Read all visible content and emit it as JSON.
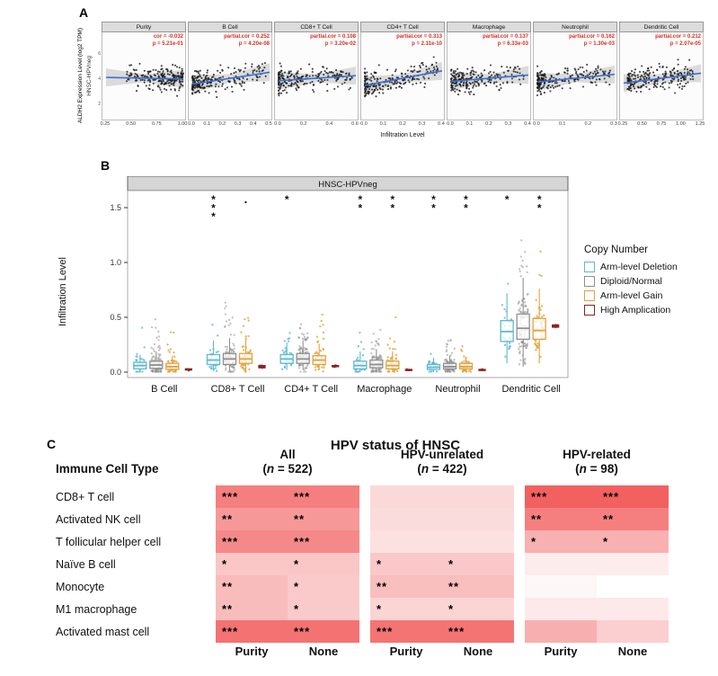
{
  "panels": {
    "a": "A",
    "b": "B",
    "c": "C"
  },
  "chart_data": [
    {
      "type": "scatter",
      "panel": "A",
      "ylabel": "ALDH2 Expression Level (log2 TPM)",
      "xlabel": "Infiltration Level",
      "facet_row": "HNSC-HPVneg",
      "stat_color": "#D93025",
      "line_color": "#3B6FD4",
      "point_color": "#1A1A1A",
      "y_ticks": [
        "6",
        "4",
        "2"
      ],
      "subplots": [
        {
          "name": "Purity",
          "cor": -0.032,
          "cor_label": "cor = -0.032",
          "p_label": "p = 5.21e-01",
          "x_ticks": [
            "0.25",
            "0.50",
            "0.75",
            "1.00"
          ],
          "xdist": "high",
          "n": 220
        },
        {
          "name": "B Cell",
          "cor": 0.252,
          "cor_label": "partial.cor = 0.252",
          "p_label": "p = 4.20e-08",
          "x_ticks": [
            "0.0",
            "0.1",
            "0.2",
            "0.3",
            "0.4",
            "0.5"
          ],
          "xdist": "low",
          "n": 220
        },
        {
          "name": "CD8+ T Cell",
          "cor": 0.108,
          "cor_label": "partial.cor = 0.108",
          "p_label": "p = 3.20e-02",
          "x_ticks": [
            "0.0",
            "0.2",
            "0.4",
            "0.6"
          ],
          "xdist": "low",
          "n": 220
        },
        {
          "name": "CD4+ T Cell",
          "cor": 0.313,
          "cor_label": "partial.cor = 0.313",
          "p_label": "p = 2.11e-10",
          "x_ticks": [
            "0.0",
            "0.1",
            "0.2",
            "0.3",
            "0.4"
          ],
          "xdist": "low",
          "n": 220
        },
        {
          "name": "Macrophage",
          "cor": 0.137,
          "cor_label": "partial.cor = 0.137",
          "p_label": "p = 6.33e-03",
          "x_ticks": [
            "0.0",
            "0.1",
            "0.2",
            "0.3",
            "0.4"
          ],
          "xdist": "low",
          "n": 220
        },
        {
          "name": "Neutrophil",
          "cor": 0.162,
          "cor_label": "partial.cor = 0.162",
          "p_label": "p = 1.30e-03",
          "x_ticks": [
            "0.0",
            "0.1",
            "0.2",
            "0.3"
          ],
          "xdist": "low",
          "n": 220
        },
        {
          "name": "Dendritic Cell",
          "cor": 0.212,
          "cor_label": "partial.cor = 0.212",
          "p_label": "p = 2.07e-05",
          "x_ticks": [
            "0.25",
            "0.50",
            "0.75",
            "1.00",
            "1.25"
          ],
          "xdist": "mid",
          "n": 220
        }
      ]
    },
    {
      "type": "box",
      "panel": "B",
      "title": "HNSC-HPVneg",
      "ylabel": "Infiltration Level",
      "ylim": [
        0,
        1.6
      ],
      "y_ticks": [
        "0.0",
        "0.5",
        "1.0",
        "1.5"
      ],
      "legend": {
        "title": "Copy Number",
        "items": [
          {
            "label": "Arm-level Deletion",
            "color": "#5FB8CE"
          },
          {
            "label": "Diploid/Normal",
            "color": "#8F8F8F"
          },
          {
            "label": "Arm-level Gain",
            "color": "#E0A23C"
          },
          {
            "label": "High Amplication",
            "color": "#8B2222"
          }
        ]
      },
      "categories": [
        "B Cell",
        "CD8+ T Cell",
        "CD4+ T Cell",
        "Macrophage",
        "Neutrophil",
        "Dendritic Cell"
      ],
      "groups": [
        {
          "name": "B Cell",
          "out_max": 0.55,
          "boxes": [
            {
              "lo": 0.005,
              "q1": 0.03,
              "med": 0.06,
              "q3": 0.09,
              "hi": 0.16
            },
            {
              "lo": 0.005,
              "q1": 0.035,
              "med": 0.065,
              "q3": 0.1,
              "hi": 0.19
            },
            {
              "lo": 0.005,
              "q1": 0.025,
              "med": 0.05,
              "q3": 0.08,
              "hi": 0.15
            },
            {
              "lo": 0.015,
              "q1": 0.02,
              "med": 0.025,
              "q3": 0.03,
              "hi": 0.035
            }
          ]
        },
        {
          "name": "CD8+ T Cell",
          "out_max": 0.8,
          "boxes": [
            {
              "lo": 0.01,
              "q1": 0.07,
              "med": 0.11,
              "q3": 0.16,
              "hi": 0.29
            },
            {
              "lo": 0.01,
              "q1": 0.07,
              "med": 0.12,
              "q3": 0.17,
              "hi": 0.31
            },
            {
              "lo": 0.01,
              "q1": 0.08,
              "med": 0.12,
              "q3": 0.17,
              "hi": 0.3
            },
            {
              "lo": 0.03,
              "q1": 0.04,
              "med": 0.05,
              "q3": 0.06,
              "hi": 0.07
            }
          ]
        },
        {
          "name": "CD4+ T Cell",
          "out_max": 0.62,
          "boxes": [
            {
              "lo": 0.02,
              "q1": 0.08,
              "med": 0.12,
              "q3": 0.16,
              "hi": 0.27
            },
            {
              "lo": 0.02,
              "q1": 0.08,
              "med": 0.12,
              "q3": 0.17,
              "hi": 0.29
            },
            {
              "lo": 0.02,
              "q1": 0.07,
              "med": 0.11,
              "q3": 0.15,
              "hi": 0.26
            },
            {
              "lo": 0.04,
              "q1": 0.05,
              "med": 0.055,
              "q3": 0.06,
              "hi": 0.07
            }
          ]
        },
        {
          "name": "Macrophage",
          "out_max": 0.58,
          "boxes": [
            {
              "lo": 0.0,
              "q1": 0.03,
              "med": 0.06,
              "q3": 0.1,
              "hi": 0.19
            },
            {
              "lo": 0.0,
              "q1": 0.04,
              "med": 0.07,
              "q3": 0.11,
              "hi": 0.21
            },
            {
              "lo": 0.0,
              "q1": 0.03,
              "med": 0.06,
              "q3": 0.1,
              "hi": 0.19
            },
            {
              "lo": 0.01,
              "q1": 0.015,
              "med": 0.02,
              "q3": 0.025,
              "hi": 0.03
            }
          ]
        },
        {
          "name": "Neutrophil",
          "out_max": 0.48,
          "boxes": [
            {
              "lo": 0.0,
              "q1": 0.025,
              "med": 0.045,
              "q3": 0.07,
              "hi": 0.13
            },
            {
              "lo": 0.0,
              "q1": 0.03,
              "med": 0.05,
              "q3": 0.08,
              "hi": 0.15
            },
            {
              "lo": 0.0,
              "q1": 0.03,
              "med": 0.05,
              "q3": 0.08,
              "hi": 0.14
            },
            {
              "lo": 0.01,
              "q1": 0.015,
              "med": 0.02,
              "q3": 0.025,
              "hi": 0.03
            }
          ]
        },
        {
          "name": "Dendritic Cell",
          "out_max": 1.32,
          "boxes": [
            {
              "lo": 0.08,
              "q1": 0.28,
              "med": 0.37,
              "q3": 0.47,
              "hi": 0.72
            },
            {
              "lo": 0.05,
              "q1": 0.3,
              "med": 0.4,
              "q3": 0.53,
              "hi": 0.86
            },
            {
              "lo": 0.08,
              "q1": 0.3,
              "med": 0.38,
              "q3": 0.49,
              "hi": 0.76
            },
            {
              "lo": 0.4,
              "q1": 0.41,
              "med": 0.42,
              "q3": 0.43,
              "hi": 0.44
            }
          ]
        }
      ],
      "significance": [
        {
          "group": 1,
          "cat": 0,
          "marks": [
            "*",
            "*",
            "*"
          ]
        },
        {
          "group": 1,
          "cat": 2,
          "marks": [
            "."
          ]
        },
        {
          "group": 2,
          "cat": 0,
          "marks": [
            "*"
          ]
        },
        {
          "group": 3,
          "cat": 0,
          "marks": [
            "*",
            "*"
          ]
        },
        {
          "group": 3,
          "cat": 2,
          "marks": [
            "*",
            "*"
          ]
        },
        {
          "group": 4,
          "cat": 0,
          "marks": [
            "*",
            "*"
          ]
        },
        {
          "group": 4,
          "cat": 2,
          "marks": [
            "*",
            "*"
          ]
        },
        {
          "group": 5,
          "cat": 0,
          "marks": [
            "*"
          ]
        },
        {
          "group": 5,
          "cat": 2,
          "marks": [
            "*",
            "*"
          ]
        }
      ]
    },
    {
      "type": "heatmap",
      "panel": "C",
      "title": "HPV status of HNSC",
      "row_header": "Immune Cell Type",
      "col_groups": [
        {
          "label": "All",
          "n": "522"
        },
        {
          "label": "HPV-unrelated",
          "n": "422"
        },
        {
          "label": "HPV-related",
          "n": "98"
        }
      ],
      "sub_cols": [
        "Purity",
        "None"
      ],
      "rows": [
        {
          "label": "CD8+ T cell",
          "sig": [
            "***",
            "***",
            "",
            "",
            "***",
            "***"
          ],
          "colors": [
            "#F57E7E",
            "#F57E7E",
            "#FBD9D9",
            "#FBD9D9",
            "#F26060",
            "#F26060"
          ]
        },
        {
          "label": "Activated NK cell",
          "sig": [
            "**",
            "**",
            "",
            "",
            "**",
            "**"
          ],
          "colors": [
            "#F79898",
            "#F79898",
            "#FBDCDC",
            "#FBDCDC",
            "#F57F7F",
            "#F57F7F"
          ]
        },
        {
          "label": "T follicular helper cell",
          "sig": [
            "***",
            "***",
            "",
            "",
            "*",
            "*"
          ],
          "colors": [
            "#F58989",
            "#F58989",
            "#FCE1E1",
            "#FCE1E1",
            "#F8B0B0",
            "#F8B0B0"
          ]
        },
        {
          "label": "Naïve B cell",
          "sig": [
            "*",
            "*",
            "*",
            "*",
            "",
            ""
          ],
          "colors": [
            "#FAC6C6",
            "#FAC6C6",
            "#FAC8C8",
            "#FAC8C8",
            "#FDECEC",
            "#FDECEC"
          ]
        },
        {
          "label": "Monocyte",
          "sig": [
            "**",
            "*",
            "**",
            "**",
            "",
            ""
          ],
          "colors": [
            "#F9BCBC",
            "#FACACA",
            "#F9BEBE",
            "#F9BEBE",
            "#FEF7F7",
            "#FFFFFF"
          ]
        },
        {
          "label": "M1 macrophage",
          "sig": [
            "**",
            "*",
            "*",
            "*",
            "",
            ""
          ],
          "colors": [
            "#F9BCBC",
            "#FACACA",
            "#FBD4D4",
            "#FBD4D4",
            "#FDE9E9",
            "#FDE9E9"
          ]
        },
        {
          "label": "Activated mast cell",
          "sig": [
            "***",
            "***",
            "***",
            "***",
            "",
            ""
          ],
          "colors": [
            "#F47272",
            "#F47272",
            "#F47474",
            "#F47474",
            "#F8AFAF",
            "#FBCFCF"
          ]
        }
      ]
    }
  ]
}
